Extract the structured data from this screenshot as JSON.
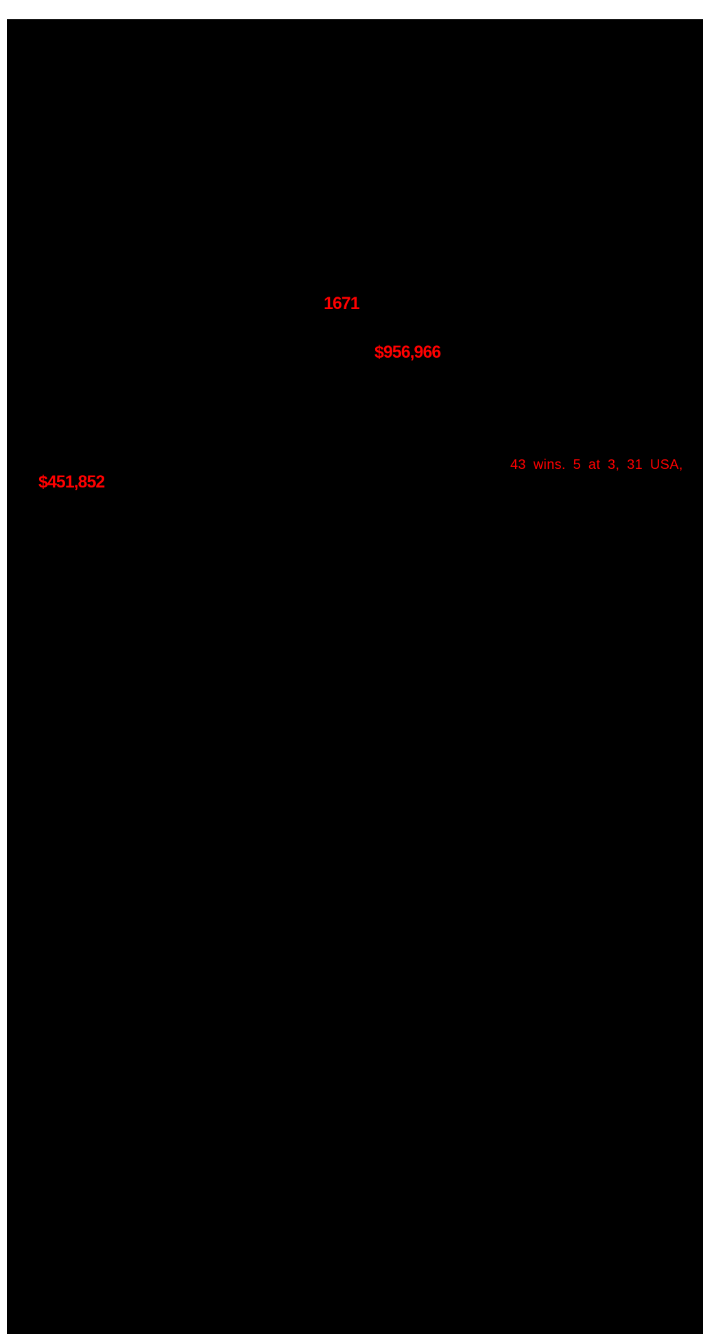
{
  "document": {
    "page_background_color": "#000000",
    "margin_color": "#ffffff",
    "highlight_color": "#ff0000",
    "highlights": [
      {
        "text": "1671"
      },
      {
        "text": "$956,966"
      },
      {
        "text": "43 wins. 5 at 3, 31 USA,"
      },
      {
        "text": "$451,852"
      }
    ]
  }
}
